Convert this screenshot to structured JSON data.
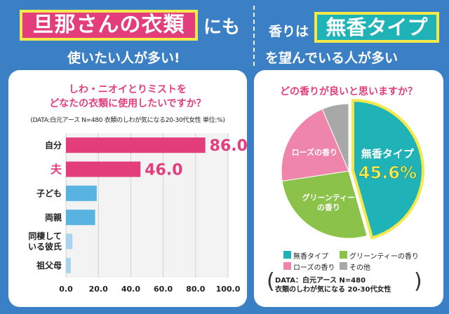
{
  "headline_left": {
    "boxed": "旦那さんの衣類",
    "suffix": "にも",
    "line2": "使いたい人が多い!"
  },
  "headline_right": {
    "prefix": "香りは",
    "boxed": "無香タイプ",
    "line2": "を望んでいる人が多い"
  },
  "colors": {
    "background": "#3b7fc4",
    "pink": "#e33e7b",
    "blue": "#58b3e0",
    "light_blue": "#a9d4ef",
    "teal": "#1fb3b8",
    "green": "#8bc34a",
    "rose": "#ef85ab",
    "gray": "#a8a8a8",
    "yellow": "#f4e84a"
  },
  "chart_data": [
    {
      "type": "bar",
      "orientation": "horizontal",
      "title_lines": [
        "しわ・ニオイとりミストを",
        "どなたの衣類に使用したいですか？"
      ],
      "note": "(DATA:白元アース N=480 衣類のしわが気になる20-30代女性 単位:%)",
      "categories": [
        "自分",
        "夫",
        "子ども",
        "両親",
        "同棲している彼氏",
        "祖父母"
      ],
      "category_lines": [
        [
          "自分"
        ],
        [
          "夫"
        ],
        [
          "子ども"
        ],
        [
          "両親"
        ],
        [
          "同棲して",
          "いる彼氏"
        ],
        [
          "祖父母"
        ]
      ],
      "values": [
        86.0,
        46.0,
        19.0,
        18.0,
        4.0,
        3.0
      ],
      "value_labels": [
        "86.0",
        "46.0",
        "",
        "",
        "",
        ""
      ],
      "xlim": [
        0,
        100
      ],
      "ticks": [
        "0.0",
        "20.0",
        "40.0",
        "60.0",
        "80.0",
        "100.0"
      ],
      "grid": true
    },
    {
      "type": "pie",
      "title": "どの香りが良いと思いますか？",
      "categories": [
        "無香タイプ",
        "グリーンティーの香り",
        "ローズの香り",
        "その他"
      ],
      "values": [
        45.6,
        27.0,
        21.0,
        6.4
      ],
      "slice_labels": [
        "無香タイプ",
        "グリーンティーの香り",
        "ローズの香り",
        ""
      ],
      "highlight_value_label": "45.6%",
      "legend": [
        "無香タイプ",
        "グリーンティーの香り",
        "ローズの香り",
        "その他"
      ],
      "legend_position": "bottom",
      "data_note": [
        "DATA：白元アース N=480",
        "衣類のしわが気になる 20-30代女性"
      ]
    }
  ]
}
